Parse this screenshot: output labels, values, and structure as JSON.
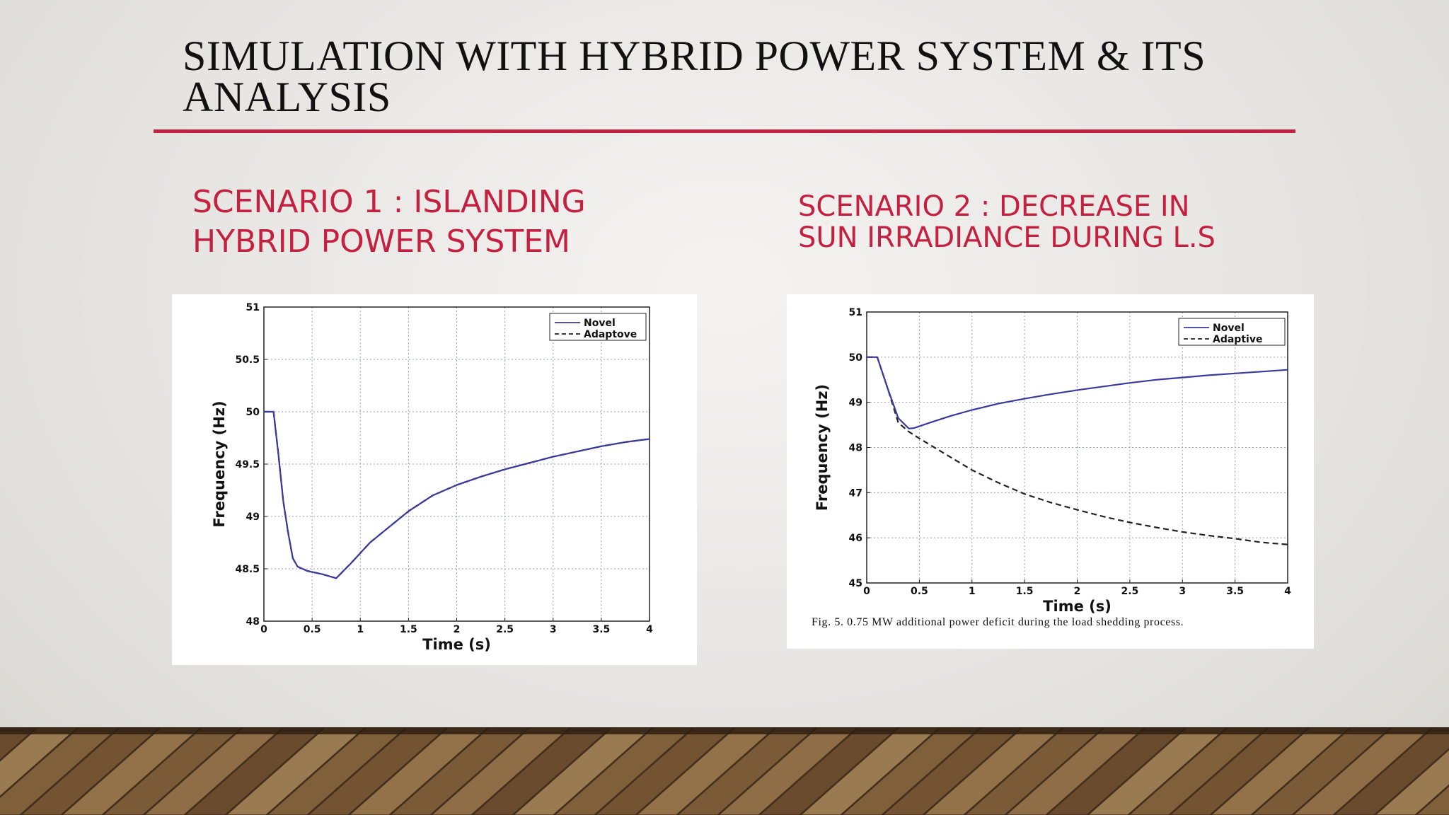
{
  "slide": {
    "title": "SIMULATION WITH HYBRID POWER SYSTEM & ITS ANALYSIS",
    "accent_color": "#c4203f"
  },
  "scenario1": {
    "heading": "SCENARIO 1 : ISLANDING HYBRID POWER SYSTEM"
  },
  "scenario2": {
    "heading": "SCENARIO 2 : DECREASE IN SUN IRRADIANCE DURING L.S",
    "caption": "Fig. 5.   0.75 MW additional power deficit during the load shedding process."
  },
  "chart_data": [
    {
      "type": "line",
      "xlabel": "Time (s)",
      "ylabel": "Frequency (Hz)",
      "xlim": [
        0,
        4
      ],
      "ylim": [
        48,
        51
      ],
      "x_ticks": [
        0,
        0.5,
        1,
        1.5,
        2,
        2.5,
        3,
        3.5,
        4
      ],
      "x_tick_labels": [
        "0",
        "0.5",
        "1",
        "1.5",
        "2",
        "2.5",
        "3",
        "3.5",
        "4"
      ],
      "y_ticks": [
        48,
        48.5,
        49,
        49.5,
        50,
        50.5,
        51
      ],
      "y_tick_labels": [
        "48",
        "48.5",
        "49",
        "49.5",
        "50",
        "50.5",
        "51"
      ],
      "grid": true,
      "legend_position": "top-right",
      "series": [
        {
          "name": "Novel",
          "style": "solid",
          "color": "#3a3a9a",
          "x": [
            0,
            0.1,
            0.15,
            0.2,
            0.25,
            0.3,
            0.35,
            0.45,
            0.6,
            0.75,
            0.9,
            1.1,
            1.3,
            1.5,
            1.75,
            2.0,
            2.25,
            2.5,
            2.75,
            3.0,
            3.25,
            3.5,
            3.75,
            4.0
          ],
          "y": [
            50,
            50,
            49.6,
            49.15,
            48.85,
            48.6,
            48.52,
            48.48,
            48.45,
            48.41,
            48.55,
            48.75,
            48.9,
            49.05,
            49.2,
            49.3,
            49.38,
            49.45,
            49.51,
            49.57,
            49.62,
            49.67,
            49.71,
            49.74
          ]
        },
        {
          "name": "Adaptove",
          "style": "dashed",
          "color": "#222222",
          "x": [
            0,
            0.1,
            0.15,
            0.2,
            0.25,
            0.3,
            0.35,
            0.45,
            0.6,
            0.75,
            0.9,
            1.1,
            1.3,
            1.5,
            1.75,
            2.0,
            2.25,
            2.5,
            2.75,
            3.0,
            3.25,
            3.5,
            3.75,
            4.0
          ],
          "y": [
            50,
            50,
            49.6,
            49.15,
            48.85,
            48.6,
            48.52,
            48.48,
            48.45,
            48.41,
            48.55,
            48.75,
            48.9,
            49.05,
            49.2,
            49.3,
            49.38,
            49.45,
            49.51,
            49.57,
            49.62,
            49.67,
            49.71,
            49.74
          ]
        }
      ]
    },
    {
      "type": "line",
      "xlabel": "Time (s)",
      "ylabel": "Frequency (Hz)",
      "xlim": [
        0,
        4
      ],
      "ylim": [
        45,
        51
      ],
      "x_ticks": [
        0,
        0.5,
        1,
        1.5,
        2,
        2.5,
        3,
        3.5,
        4
      ],
      "x_tick_labels": [
        "0",
        "0.5",
        "1",
        "1.5",
        "2",
        "2.5",
        "3",
        "3.5",
        "4"
      ],
      "y_ticks": [
        45,
        46,
        47,
        48,
        49,
        50,
        51
      ],
      "y_tick_labels": [
        "45",
        "46",
        "47",
        "48",
        "49",
        "50",
        "51"
      ],
      "grid": true,
      "legend_position": "top-right",
      "series": [
        {
          "name": "Novel",
          "style": "solid",
          "color": "#3a3a9a",
          "x": [
            0,
            0.1,
            0.2,
            0.3,
            0.4,
            0.45,
            0.6,
            0.8,
            1.0,
            1.25,
            1.5,
            1.75,
            2.0,
            2.25,
            2.5,
            2.75,
            3.0,
            3.25,
            3.5,
            3.75,
            4.0
          ],
          "y": [
            50,
            50,
            49.3,
            48.65,
            48.42,
            48.43,
            48.55,
            48.7,
            48.83,
            48.97,
            49.08,
            49.18,
            49.27,
            49.35,
            49.43,
            49.5,
            49.55,
            49.6,
            49.64,
            49.68,
            49.72
          ]
        },
        {
          "name": "Adaptive",
          "style": "dashed",
          "color": "#222222",
          "x": [
            0,
            0.1,
            0.2,
            0.3,
            0.4,
            0.5,
            0.75,
            1.0,
            1.25,
            1.5,
            1.75,
            2.0,
            2.25,
            2.5,
            2.75,
            3.0,
            3.25,
            3.5,
            3.75,
            4.0
          ],
          "y": [
            50,
            50,
            49.3,
            48.55,
            48.35,
            48.2,
            47.85,
            47.5,
            47.22,
            46.97,
            46.78,
            46.62,
            46.47,
            46.34,
            46.23,
            46.13,
            46.05,
            45.98,
            45.9,
            45.85
          ]
        }
      ]
    }
  ]
}
